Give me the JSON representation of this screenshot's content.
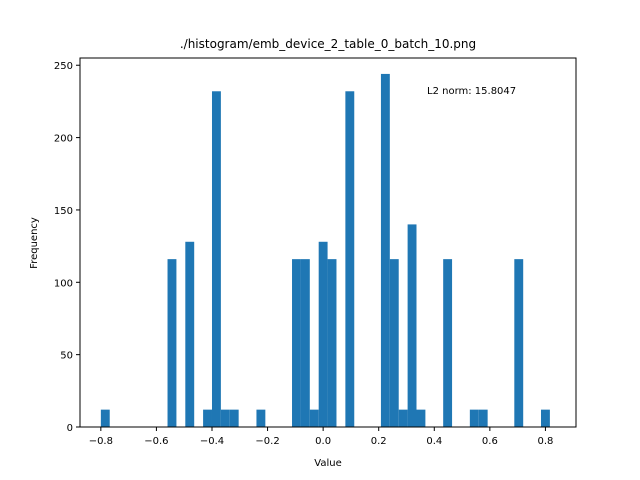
{
  "chart_data": {
    "type": "bar",
    "title": "./histogram/emb_device_2_table_0_batch_10.png",
    "xlabel": "Value",
    "ylabel": "Frequency",
    "annotation": "L2 norm: 15.8047",
    "xlim": [
      -0.875,
      0.91
    ],
    "ylim": [
      0,
      255
    ],
    "xticks": [
      -0.8,
      -0.6,
      -0.4,
      -0.2,
      0.0,
      0.2,
      0.4,
      0.6,
      0.8
    ],
    "xtick_labels": [
      "−0.8",
      "−0.6",
      "−0.4",
      "−0.2",
      "0.0",
      "0.2",
      "0.4",
      "0.6",
      "0.8"
    ],
    "yticks": [
      0,
      50,
      100,
      150,
      200,
      250
    ],
    "ytick_labels": [
      "0",
      "50",
      "100",
      "150",
      "200",
      "250"
    ],
    "bar_color": "#1f77b4",
    "bin_width": 0.032,
    "bins": [
      {
        "x": -0.784,
        "y": 12
      },
      {
        "x": -0.544,
        "y": 116
      },
      {
        "x": -0.48,
        "y": 128
      },
      {
        "x": -0.416,
        "y": 12
      },
      {
        "x": -0.384,
        "y": 232
      },
      {
        "x": -0.352,
        "y": 12
      },
      {
        "x": -0.32,
        "y": 12
      },
      {
        "x": -0.224,
        "y": 12
      },
      {
        "x": -0.096,
        "y": 116
      },
      {
        "x": -0.064,
        "y": 116
      },
      {
        "x": -0.032,
        "y": 12
      },
      {
        "x": 0.0,
        "y": 128
      },
      {
        "x": 0.032,
        "y": 116
      },
      {
        "x": 0.096,
        "y": 232
      },
      {
        "x": 0.224,
        "y": 244
      },
      {
        "x": 0.256,
        "y": 116
      },
      {
        "x": 0.288,
        "y": 12
      },
      {
        "x": 0.32,
        "y": 140
      },
      {
        "x": 0.352,
        "y": 12
      },
      {
        "x": 0.448,
        "y": 116
      },
      {
        "x": 0.544,
        "y": 12
      },
      {
        "x": 0.576,
        "y": 12
      },
      {
        "x": 0.704,
        "y": 116
      },
      {
        "x": 0.8,
        "y": 12
      }
    ]
  }
}
